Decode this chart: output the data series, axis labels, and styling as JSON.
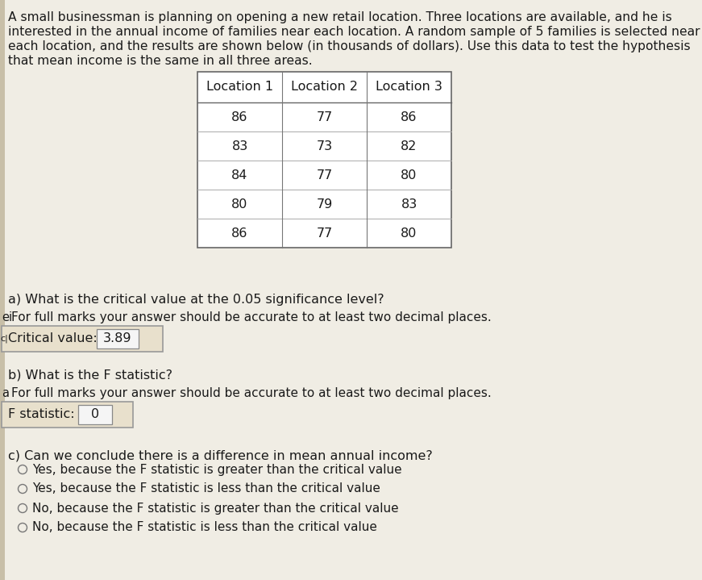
{
  "page_bg": "#f0ede4",
  "left_strip_color": "#c8bfa8",
  "intro_text_lines": [
    "A small businessman is planning on opening a new retail location. Three locations are available, and he is",
    "interested in the annual income of families near each location. A random sample of 5 families is selected near",
    "each location, and the results are shown below (in thousands of dollars). Use this data to test the hypothesis",
    "that mean income is the same in all three areas."
  ],
  "table_headers": [
    "Location 1",
    "Location 2",
    "Location 3"
  ],
  "table_data": [
    [
      86,
      77,
      86
    ],
    [
      83,
      73,
      82
    ],
    [
      84,
      77,
      80
    ],
    [
      80,
      79,
      83
    ],
    [
      86,
      77,
      80
    ]
  ],
  "part_a_label": "a) What is the critical value at the 0.05 significance level?",
  "part_a_sub": "For full marks your answer should be accurate to at least two decimal places.",
  "critical_value_label": "Critical value:  ",
  "critical_value": "3.89",
  "part_b_label": "b) What is the F statistic?",
  "part_b_sub": "For full marks your answer should be accurate to at least two decimal places.",
  "f_stat_label": "F statistic:  ",
  "f_stat_value": "0",
  "part_c_label": "c) Can we conclude there is a difference in mean annual income?",
  "radio_options": [
    "Yes, because the F statistic is greater than the critical value",
    "Yes, because the F statistic is less than the critical value",
    "No, because the F statistic is greater than the critical value",
    "No, because the F statistic is less than the critical value"
  ],
  "font_size_intro": 11.2,
  "font_size_table": 11.5,
  "font_size_section": 11.5,
  "font_size_answer": 11.5,
  "text_color": "#1a1a1a",
  "table_bg": "#ffffff",
  "box_bg": "#e8e0cc",
  "box_border": "#999999",
  "inner_box_bg": "#f5f5f5",
  "inner_box_border": "#888888"
}
